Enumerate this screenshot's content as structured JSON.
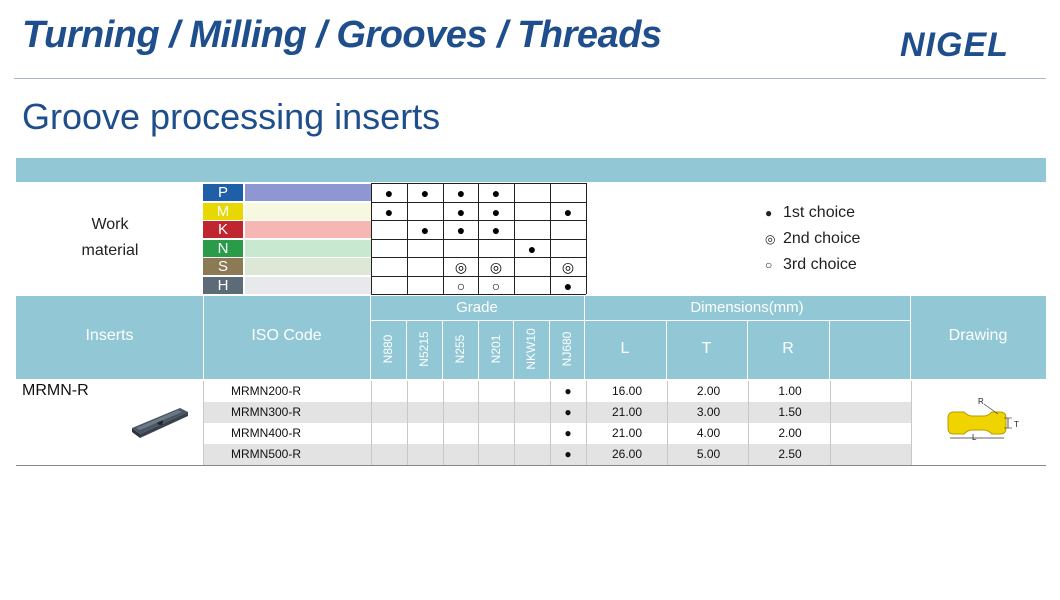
{
  "header": {
    "title": "Turning / Milling / Grooves / Threads",
    "logo": "NIGEL",
    "subtitle": "Groove processing inserts"
  },
  "work_material": {
    "label_line1": "Work",
    "label_line2": "material",
    "codes": [
      {
        "code": "P",
        "code_color": "#1f5fa8",
        "bar_color": "#8e97d1"
      },
      {
        "code": "M",
        "code_color": "#e6d800",
        "bar_color": "#f6f8df"
      },
      {
        "code": "K",
        "code_color": "#c0262d",
        "bar_color": "#f6b6b4"
      },
      {
        "code": "N",
        "code_color": "#2a9b48",
        "bar_color": "#c8e8cf"
      },
      {
        "code": "S",
        "code_color": "#8c7a54",
        "bar_color": "#dde7d6"
      },
      {
        "code": "H",
        "code_color": "#5d6a78",
        "bar_color": "#e7e9ec"
      }
    ],
    "marks": [
      [
        "●",
        "●",
        "●",
        "●",
        "",
        ""
      ],
      [
        "●",
        "",
        "●",
        "●",
        "",
        "●"
      ],
      [
        "",
        "●",
        "●",
        "●",
        "",
        ""
      ],
      [
        "",
        "",
        "",
        "",
        "●",
        ""
      ],
      [
        "",
        "",
        "◎",
        "◎",
        "",
        "◎"
      ],
      [
        "",
        "",
        "○",
        "○",
        "",
        "●"
      ]
    ]
  },
  "legend": [
    {
      "symbol": "●",
      "text": "1st choice"
    },
    {
      "symbol": "◎",
      "text": "2nd choice"
    },
    {
      "symbol": "○",
      "text": "3rd choice"
    }
  ],
  "table": {
    "col_inserts": "Inserts",
    "col_iso": "ISO Code",
    "col_grade": "Grade",
    "grades": [
      "N880",
      "N5215",
      "N255",
      "N201",
      "NKW10",
      "NJ680"
    ],
    "col_dimensions": "Dimensions(mm)",
    "dims": [
      "L",
      "T",
      "R"
    ],
    "col_drawing": "Drawing",
    "insert_name": "MRMN-R",
    "rows": [
      {
        "iso": "MRMN200-R",
        "nj680": "●",
        "L": "16.00",
        "T": "2.00",
        "R": "1.00"
      },
      {
        "iso": "MRMN300-R",
        "nj680": "●",
        "L": "21.00",
        "T": "3.00",
        "R": "1.50"
      },
      {
        "iso": "MRMN400-R",
        "nj680": "●",
        "L": "21.00",
        "T": "4.00",
        "R": "2.00"
      },
      {
        "iso": "MRMN500-R",
        "nj680": "●",
        "L": "26.00",
        "T": "5.00",
        "R": "2.50"
      }
    ],
    "drawing_labels": {
      "r": "R",
      "t": "T",
      "l": "L"
    }
  },
  "colors": {
    "brand_blue": "#1f4e8c",
    "header_band": "#92c8d6",
    "row_shade": "#e3e3e3",
    "insert_yellow": "#f0d400"
  }
}
